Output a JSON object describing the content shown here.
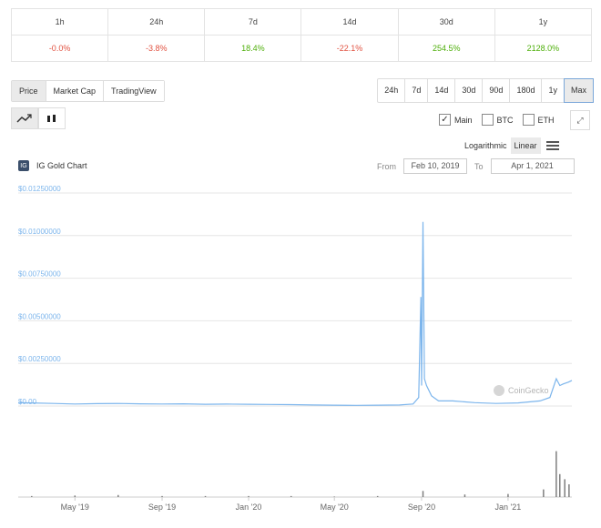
{
  "changes": {
    "headers": [
      "1h",
      "24h",
      "7d",
      "14d",
      "30d",
      "1y"
    ],
    "values": [
      "-0.0%",
      "-3.8%",
      "18.4%",
      "-22.1%",
      "254.5%",
      "2128.0%"
    ]
  },
  "tabs": [
    "Price",
    "Market Cap",
    "TradingView"
  ],
  "ranges": [
    "24h",
    "7d",
    "14d",
    "30d",
    "90d",
    "180d",
    "1y",
    "Max"
  ],
  "checks": [
    {
      "label": "Main",
      "checked": true
    },
    {
      "label": "BTC",
      "checked": false
    },
    {
      "label": "ETH",
      "checked": false
    }
  ],
  "scale": {
    "log": "Logarithmic",
    "linear": "Linear"
  },
  "chart_title": "IG Gold Chart",
  "logo_text": "IG",
  "from_label": "From",
  "to_label": "To",
  "from_date": "Feb 10, 2019",
  "to_date": "Apr 1, 2021",
  "watermark": "CoinGecko",
  "colors": {
    "line": "#7cb5ec",
    "neg": "#e15241",
    "pos": "#4eaf0a",
    "volume": "#7f7f7f"
  },
  "chart_data": {
    "type": "line",
    "title": "IG Gold Chart",
    "ylim": [
      0,
      0.0125
    ],
    "y_ticks": [
      {
        "value": 0.0125,
        "label": "$0.01250000"
      },
      {
        "value": 0.01,
        "label": "$0.01000000"
      },
      {
        "value": 0.0075,
        "label": "$0.00750000"
      },
      {
        "value": 0.005,
        "label": "$0.00500000"
      },
      {
        "value": 0.0025,
        "label": "$0.00250000"
      },
      {
        "value": 0,
        "label": "$0.00"
      }
    ],
    "x_range": [
      "2019-02-10",
      "2021-04-01"
    ],
    "x_ticks": [
      {
        "date": "2019-05-01",
        "label": "May '19"
      },
      {
        "date": "2019-09-01",
        "label": "Sep '19"
      },
      {
        "date": "2020-01-01",
        "label": "Jan '20"
      },
      {
        "date": "2020-05-01",
        "label": "May '20"
      },
      {
        "date": "2020-09-01",
        "label": "Sep '20"
      },
      {
        "date": "2021-01-01",
        "label": "Jan '21"
      }
    ],
    "grid": true,
    "series": [
      {
        "points": [
          [
            "2019-02-10",
            0.0002
          ],
          [
            "2019-03-01",
            0.00018
          ],
          [
            "2019-04-01",
            0.00015
          ],
          [
            "2019-05-01",
            0.00012
          ],
          [
            "2019-06-01",
            0.00014
          ],
          [
            "2019-07-01",
            0.00015
          ],
          [
            "2019-08-01",
            0.00013
          ],
          [
            "2019-09-01",
            0.00012
          ],
          [
            "2019-10-01",
            0.00013
          ],
          [
            "2019-11-01",
            0.0001
          ],
          [
            "2019-12-01",
            0.00011
          ],
          [
            "2020-01-01",
            0.0001
          ],
          [
            "2020-02-01",
            9e-05
          ],
          [
            "2020-03-01",
            8e-05
          ],
          [
            "2020-04-01",
            6e-05
          ],
          [
            "2020-05-01",
            5e-05
          ],
          [
            "2020-06-01",
            4e-05
          ],
          [
            "2020-07-01",
            5e-05
          ],
          [
            "2020-08-01",
            6e-05
          ],
          [
            "2020-08-20",
            0.00012
          ],
          [
            "2020-08-28",
            0.0005
          ],
          [
            "2020-08-31",
            0.0064
          ],
          [
            "2020-09-01",
            0.0012
          ],
          [
            "2020-09-03",
            0.0108
          ],
          [
            "2020-09-05",
            0.0016
          ],
          [
            "2020-09-08",
            0.0012
          ],
          [
            "2020-09-15",
            0.0006
          ],
          [
            "2020-09-25",
            0.0003
          ],
          [
            "2020-10-15",
            0.0003
          ],
          [
            "2020-11-15",
            0.0002
          ],
          [
            "2020-12-15",
            0.00015
          ],
          [
            "2021-01-15",
            0.00018
          ],
          [
            "2021-02-15",
            0.0003
          ],
          [
            "2021-03-01",
            0.0005
          ],
          [
            "2021-03-10",
            0.0016
          ],
          [
            "2021-03-15",
            0.0012
          ],
          [
            "2021-03-20",
            0.0013
          ],
          [
            "2021-03-27",
            0.0014
          ],
          [
            "2021-04-01",
            0.0015
          ]
        ]
      }
    ],
    "volume": [
      [
        "2019-03-01",
        0.02
      ],
      [
        "2019-05-01",
        0.03
      ],
      [
        "2019-07-01",
        0.04
      ],
      [
        "2019-09-01",
        0.02
      ],
      [
        "2019-11-01",
        0.02
      ],
      [
        "2020-01-01",
        0.02
      ],
      [
        "2020-03-01",
        0.02
      ],
      [
        "2020-05-01",
        0.01
      ],
      [
        "2020-07-01",
        0.02
      ],
      [
        "2020-09-03",
        0.12
      ],
      [
        "2020-11-01",
        0.05
      ],
      [
        "2021-01-01",
        0.06
      ],
      [
        "2021-02-20",
        0.15
      ],
      [
        "2021-03-10",
        0.9
      ],
      [
        "2021-03-15",
        0.45
      ],
      [
        "2021-03-22",
        0.35
      ],
      [
        "2021-03-28",
        0.25
      ]
    ]
  }
}
